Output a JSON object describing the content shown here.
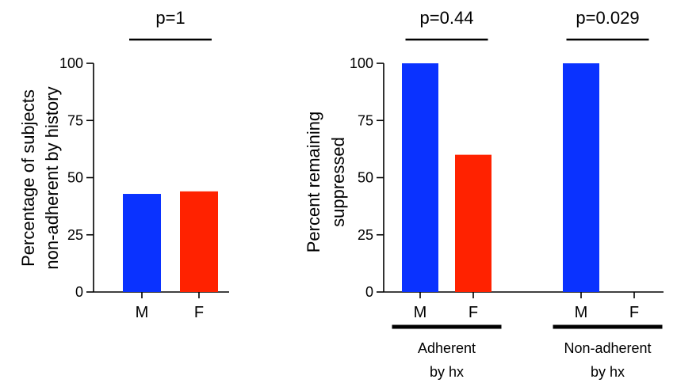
{
  "chart_data": [
    {
      "type": "bar",
      "ylabel_lines": [
        "Percentage of subjects",
        "non-adherent by history"
      ],
      "ylim": [
        0,
        100
      ],
      "yticks": [
        0,
        25,
        50,
        75,
        100
      ],
      "categories": [
        "M",
        "F"
      ],
      "values": [
        42.9,
        44.0
      ],
      "colors": [
        "#0a32ff",
        "#ff2200"
      ],
      "annotations": [
        {
          "text": "p=1",
          "groups": [
            0,
            1
          ]
        }
      ]
    },
    {
      "type": "bar",
      "ylabel_lines": [
        "Percent remaining",
        "suppressed"
      ],
      "ylim": [
        0,
        100
      ],
      "yticks": [
        0,
        25,
        50,
        75,
        100
      ],
      "categories": [
        "M",
        "F",
        "M",
        "F"
      ],
      "values": [
        100,
        60,
        100,
        0
      ],
      "colors": [
        "#0a32ff",
        "#ff2200",
        "#0a32ff",
        "#ff2200"
      ],
      "groups": [
        {
          "label_lines": [
            "Adherent",
            "by hx"
          ],
          "members": [
            0,
            1
          ]
        },
        {
          "label_lines": [
            "Non-adherent",
            "by hx"
          ],
          "members": [
            2,
            3
          ]
        }
      ],
      "annotations": [
        {
          "text": "p=0.44",
          "groups": [
            0,
            1
          ]
        },
        {
          "text": "p=0.029",
          "groups": [
            2,
            3
          ]
        }
      ]
    }
  ]
}
